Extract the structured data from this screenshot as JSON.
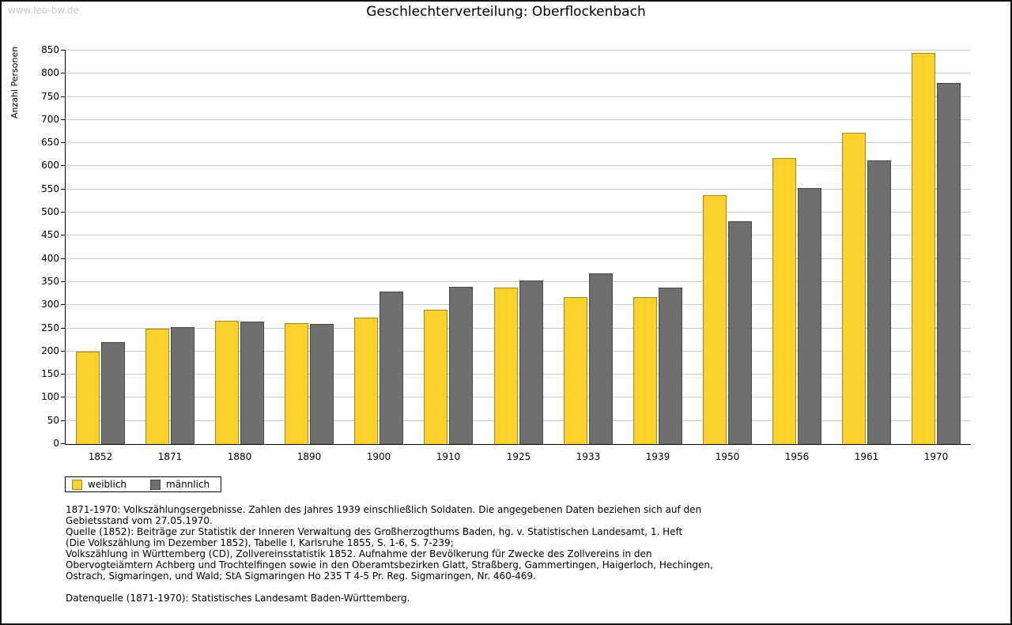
{
  "page": {
    "watermark": "www.leo-bw.de"
  },
  "chart_data": {
    "type": "bar",
    "title": "Geschlechterverteilung: Oberflockenbach",
    "xlabel": "",
    "ylabel": "Anzahl Personen",
    "categories": [
      "1852",
      "1871",
      "1880",
      "1890",
      "1900",
      "1910",
      "1925",
      "1933",
      "1939",
      "1950",
      "1956",
      "1961",
      "1970"
    ],
    "series": [
      {
        "name": "weiblich",
        "color": "#FBD22B",
        "values": [
          200,
          250,
          266,
          261,
          273,
          290,
          338,
          317,
          317,
          538,
          618,
          673,
          845
        ]
      },
      {
        "name": "männlich",
        "color": "#6E6E6E",
        "values": [
          220,
          252,
          265,
          259,
          329,
          340,
          353,
          368,
          338,
          481,
          553,
          612,
          780
        ]
      }
    ],
    "ylim": [
      0,
      850
    ],
    "ytick_step": 50,
    "grid": true,
    "legend_position": "bottom-left"
  },
  "footnotes": {
    "lines": [
      "1871-1970: Volkszählungsergebnisse. Zahlen des Jahres 1939 einschließlich Soldaten. Die angegebenen Daten beziehen sich auf den",
      "Gebietsstand vom 27.05.1970.",
      "Quelle (1852): Beiträge zur Statistik der Inneren Verwaltung des Großherzogthums Baden, hg. v. Statistischen Landesamt, 1. Heft",
      "(Die Volkszählung im Dezember 1852), Tabelle I, Karlsruhe 1855, S. 1-6, S. 7-239;",
      "Volkszählung in Württemberg (CD), Zollvereinsstatistik 1852. Aufnahme der Bevölkerung für Zwecke des Zollvereins in den",
      "Obervogteiämtern Achberg und Trochtelfingen sowie in den Oberamtsbezirken Glatt, Straßberg, Gammertingen, Haigerloch, Hechingen,",
      "Ostrach, Sigmaringen, und Wald; StA Sigmaringen Ho 235 T 4-5 Pr. Reg. Sigmaringen, Nr. 460-469.",
      "",
      "Datenquelle (1871-1970): Statistisches Landesamt Baden-Württemberg."
    ]
  }
}
